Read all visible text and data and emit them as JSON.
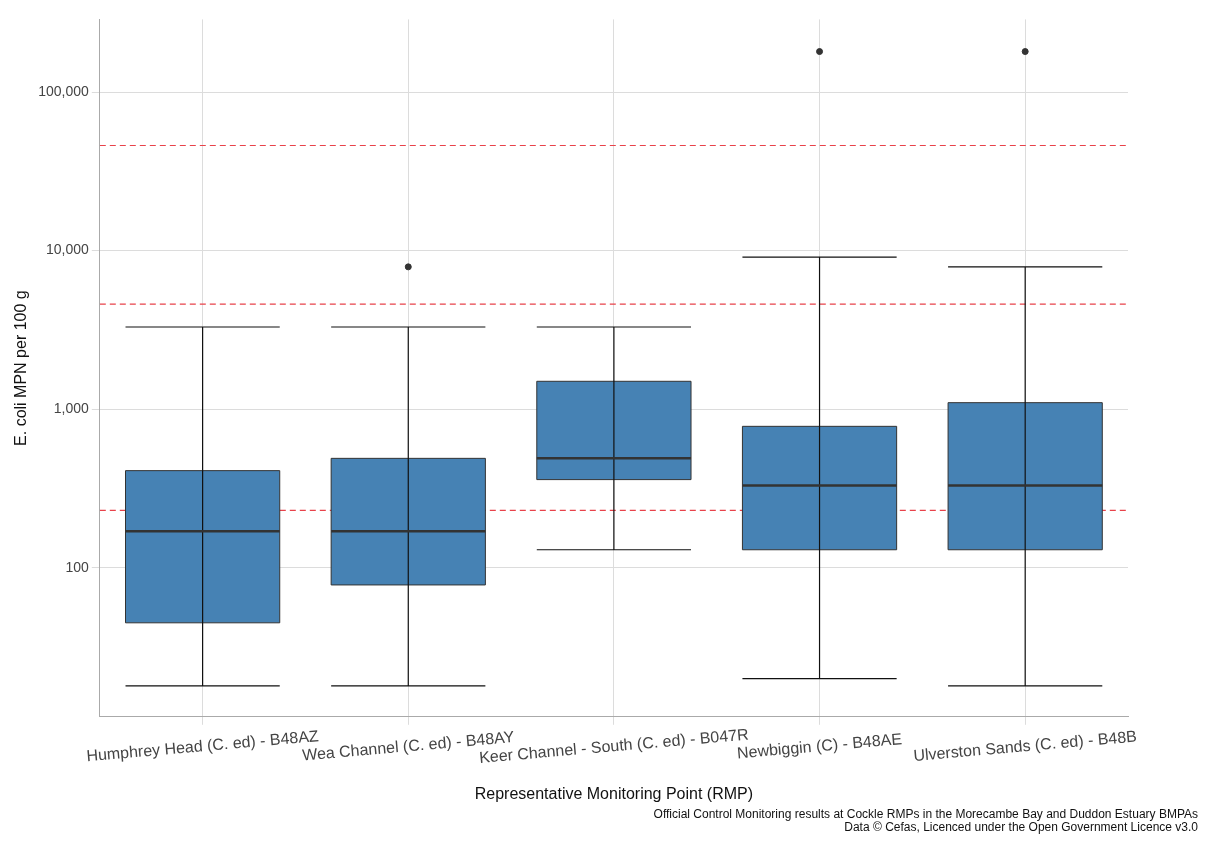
{
  "chart_data": {
    "type": "box",
    "xlabel": "Representative Monitoring Point (RMP)",
    "ylabel": "E. coli MPN per 100 g",
    "categories": [
      "Humphrey Head (C. ed) - B48AZ",
      "Wea Channel (C. ed) - B48AY",
      "Keer Channel - South (C. ed) - B047R",
      "Newbiggin (C) - B48AE",
      "Ulverston Sands (C. ed) - B48B"
    ],
    "color": "#4682b4",
    "boxes": [
      {
        "low": 18,
        "q1": 45,
        "median": 170,
        "q3": 410,
        "high": 3300
      },
      {
        "low": 18,
        "q1": 78,
        "median": 170,
        "q3": 490,
        "high": 3300,
        "outliers": [
          7900
        ]
      },
      {
        "low": 130,
        "q1": 360,
        "median": 490,
        "q3": 1500,
        "high": 3300
      },
      {
        "low": 20,
        "q1": 130,
        "median": 330,
        "q3": 780,
        "high": 9100,
        "outliers": [
          180000
        ]
      },
      {
        "low": 18,
        "q1": 130,
        "median": 330,
        "q3": 1100,
        "high": 7900,
        "outliers": [
          180000
        ]
      }
    ],
    "log": true,
    "ylim": [
      11.5,
      287000
    ],
    "yticks": [
      {
        "value": 100,
        "label": "100"
      },
      {
        "value": 1000,
        "label": "1,000"
      },
      {
        "value": 10000,
        "label": "10,000"
      },
      {
        "value": 100000,
        "label": "100,000"
      }
    ],
    "grid": true,
    "ref_lines": [
      {
        "axis": "y",
        "value": 46000,
        "color": "#e8424a",
        "line_style": "dashed"
      },
      {
        "axis": "y",
        "value": 4600,
        "color": "#e8424a",
        "line_style": "dashed"
      },
      {
        "axis": "y",
        "value": 230,
        "color": "#e8424a",
        "line_style": "dashed"
      }
    ],
    "annotations": [
      "Official Control Monitoring results at Cockle RMPs in the Morecambe Bay and Duddon Estuary BMPAs",
      "Data © Cefas, Licenced under the Open Government Licence v3.0"
    ]
  }
}
